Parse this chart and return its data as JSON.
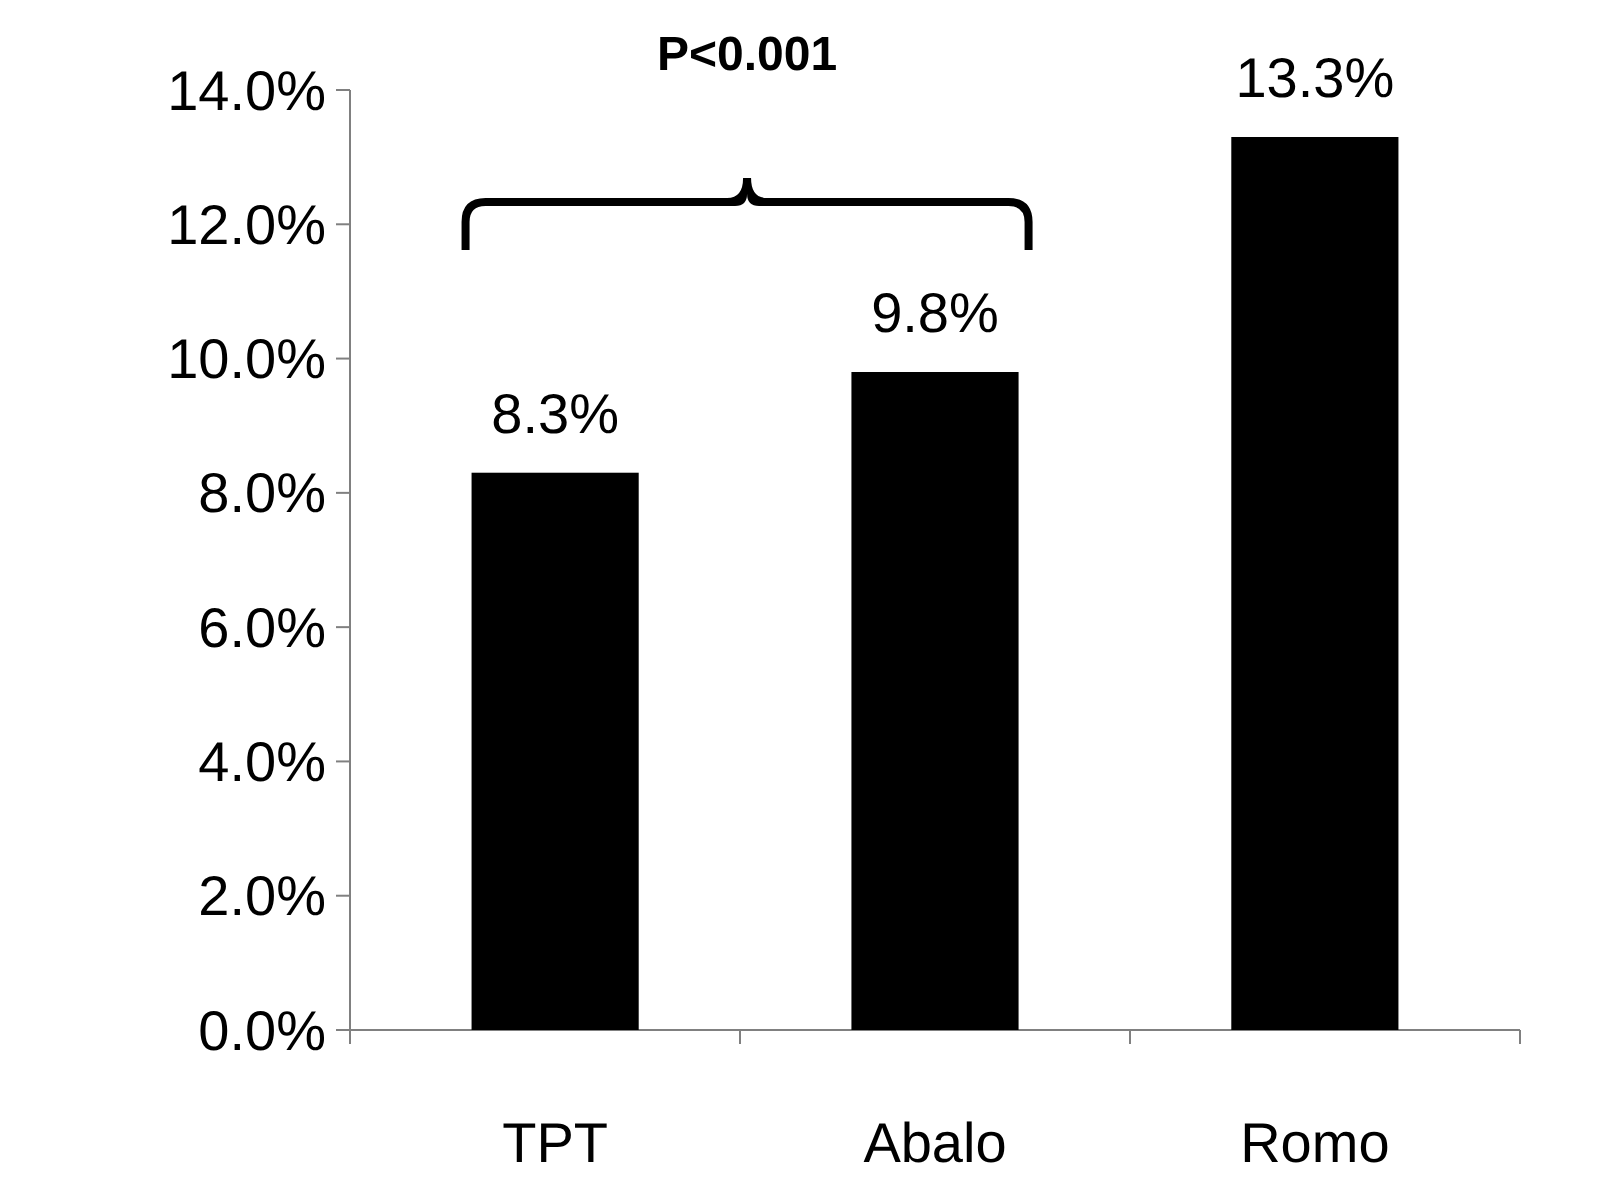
{
  "chart_data": {
    "type": "bar",
    "categories": [
      "TPT",
      "Abalo",
      "Romo"
    ],
    "values": [
      8.3,
      9.8,
      13.3
    ],
    "color": "#000000",
    "value_labels": [
      "8.3%",
      "9.8%",
      "13.3%"
    ],
    "ylim": [
      0,
      14
    ],
    "yticks": [
      {
        "value": 0,
        "label": "0.0%"
      },
      {
        "value": 2,
        "label": "2.0%"
      },
      {
        "value": 4,
        "label": "4.0%"
      },
      {
        "value": 6,
        "label": "6.0%"
      },
      {
        "value": 8,
        "label": "8.0%"
      },
      {
        "value": 10,
        "label": "10.0%"
      },
      {
        "value": 12,
        "label": "12.0%"
      },
      {
        "value": 14,
        "label": "14.0%"
      }
    ],
    "annotations": [
      "P<0.001"
    ]
  }
}
